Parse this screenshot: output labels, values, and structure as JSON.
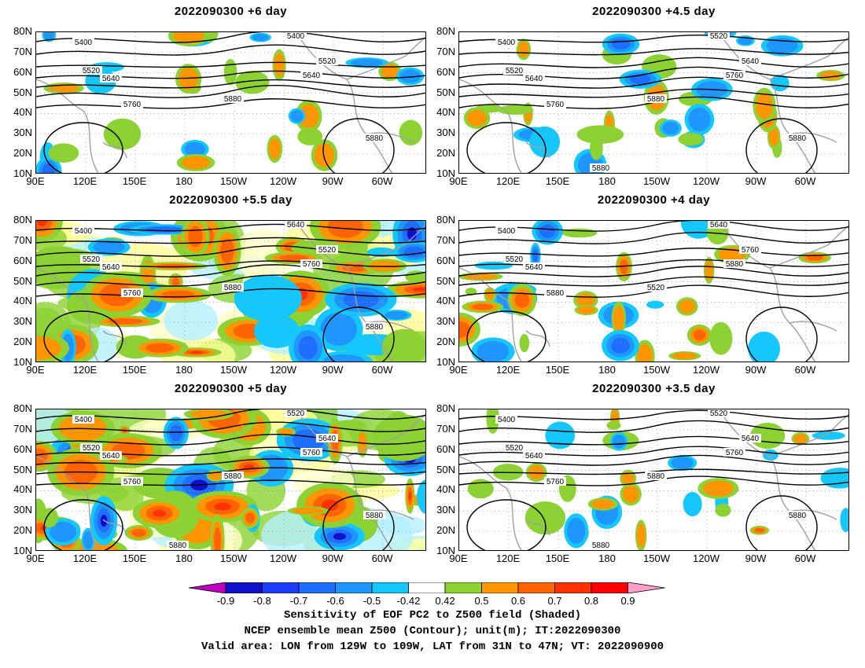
{
  "panels": [
    {
      "title": "2022090300 +6 day",
      "col": 0,
      "row": 0,
      "intensity": 0.35,
      "contour_labels": [
        "5400",
        "5520",
        "5640",
        "5760",
        "5880",
        "5400",
        "5520",
        "5640",
        "5880"
      ]
    },
    {
      "title": "2022090300 +4.5 day",
      "col": 1,
      "row": 0,
      "intensity": 0.45,
      "contour_labels": [
        "5400",
        "5520",
        "5640",
        "5760",
        "5880",
        "5520",
        "5640",
        "5760",
        "5880",
        "5880"
      ]
    },
    {
      "title": "2022090300 +5.5 day",
      "col": 0,
      "row": 1,
      "intensity": 1.0,
      "contour_labels": [
        "5400",
        "5520",
        "5640",
        "5760",
        "5880",
        "5640",
        "5520",
        "5760",
        "5880"
      ]
    },
    {
      "title": "2022090300 +4 day",
      "col": 1,
      "row": 1,
      "intensity": 0.45,
      "contour_labels": [
        "5400",
        "5520",
        "5640",
        "5880",
        "5520",
        "5640",
        "5760",
        "5880"
      ]
    },
    {
      "title": "2022090300 +5 day",
      "col": 0,
      "row": 2,
      "intensity": 1.0,
      "contour_labels": [
        "5400",
        "5520",
        "5640",
        "5760",
        "5880",
        "5520",
        "5640",
        "5760",
        "5880",
        "5880"
      ]
    },
    {
      "title": "2022090300 +3.5 day",
      "col": 1,
      "row": 2,
      "intensity": 0.4,
      "contour_labels": [
        "5400",
        "5520",
        "5640",
        "5760",
        "5880",
        "5520",
        "5640",
        "5760",
        "5880",
        "5880"
      ]
    }
  ],
  "y_axis_labels": [
    "80N",
    "70N",
    "60N",
    "50N",
    "40N",
    "30N",
    "20N",
    "10N"
  ],
  "x_axis_labels": [
    "90E",
    "120E",
    "150E",
    "180",
    "150W",
    "120W",
    "90W",
    "60W"
  ],
  "colorbar": {
    "levels": [
      "-0.9",
      "-0.8",
      "-0.7",
      "-0.6",
      "-0.5",
      "-0.42",
      "0.42",
      "0.5",
      "0.6",
      "0.7",
      "0.8",
      "0.9"
    ],
    "colors": [
      "#c000c0",
      "#1010c8",
      "#1e3cff",
      "#1e6eff",
      "#1e96ff",
      "#14c8ff",
      "#ffffff",
      "#8cd232",
      "#ff9600",
      "#ff6400",
      "#ff3200",
      "#ff0000",
      "#ffa0c8"
    ]
  },
  "caption": [
    "Sensitivity of EOF PC2 to Z500 field (Shaded)",
    "NCEP ensemble mean Z500 (Contour); unit(m); IT:2022090300",
    "Valid area: LON from 129W to 109W, LAT from 31N to 47N; VT: 2022090900"
  ]
}
